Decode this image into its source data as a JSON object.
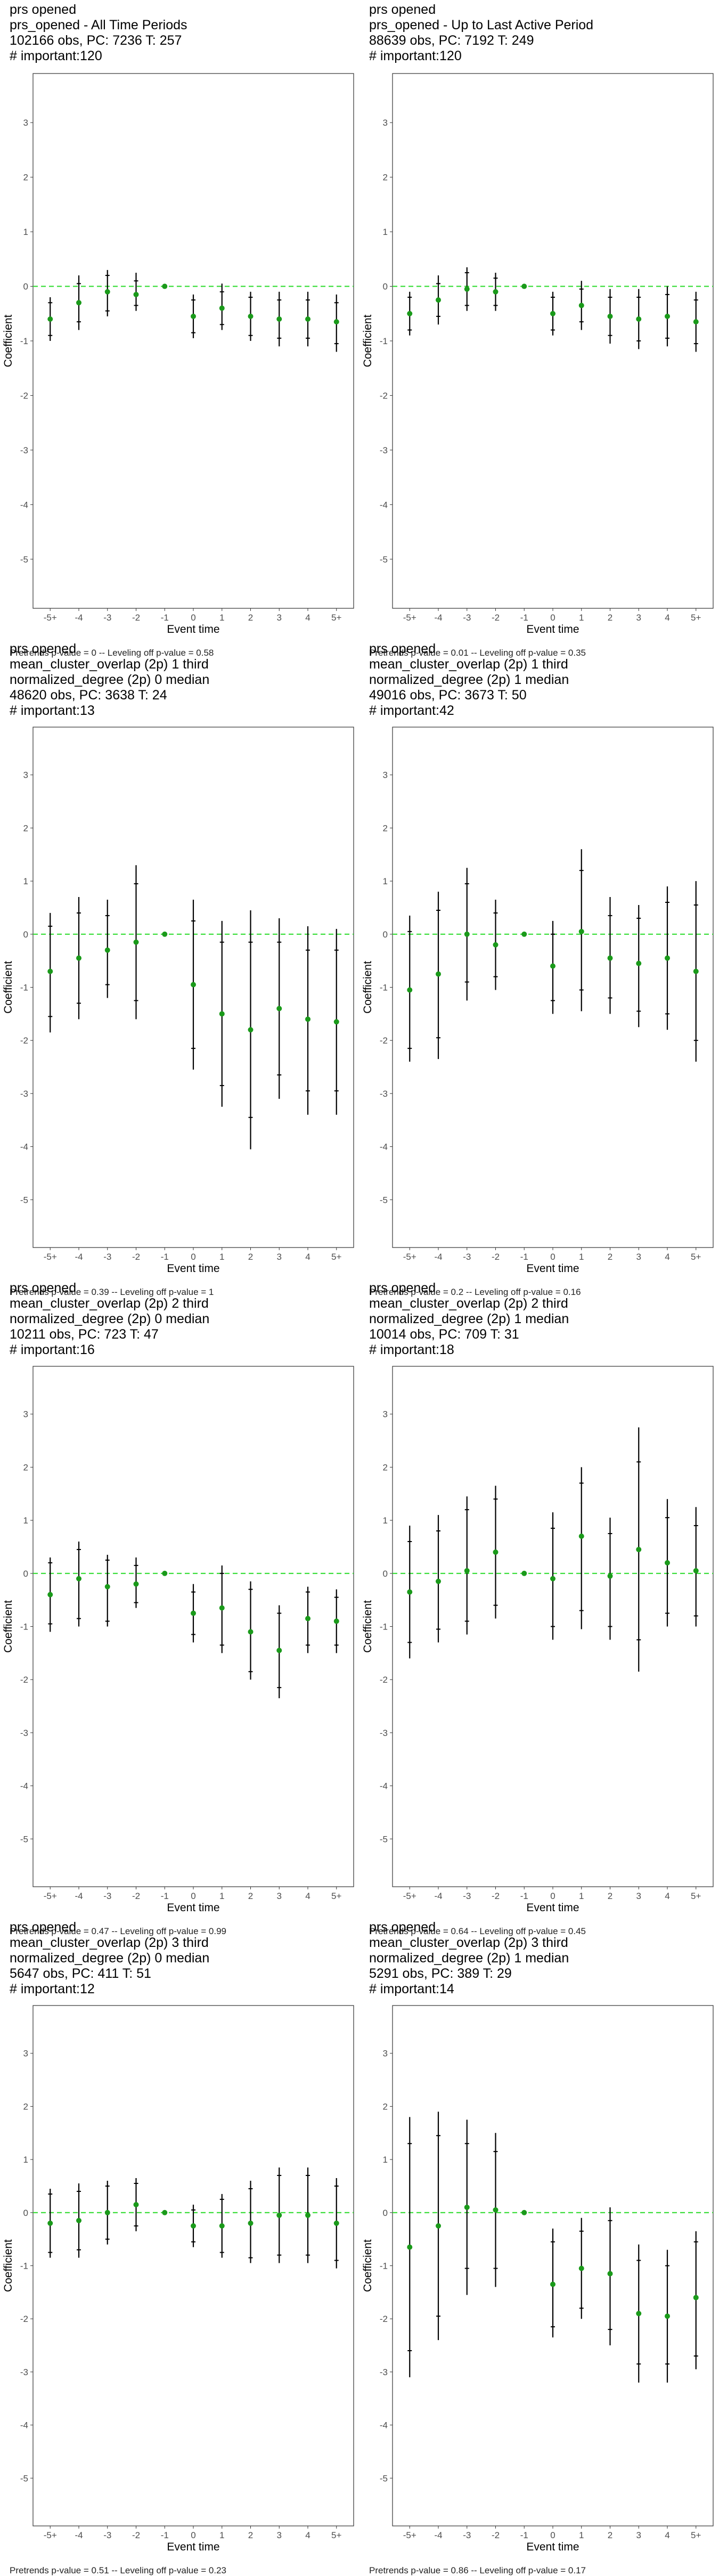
{
  "chart_data": [
    {
      "type": "scatter",
      "title_lines": [
        "prs opened",
        "prs_opened - All Time Periods",
        "102166 obs, PC: 7236 T: 257",
        "# important:120"
      ],
      "xlabel": "Event time",
      "ylabel": "Coefficient",
      "categories": [
        "-5+",
        "-4",
        "-3",
        "-2",
        "-1",
        "0",
        "1",
        "2",
        "3",
        "4",
        "5+"
      ],
      "ylim": [
        -5.9,
        3.9
      ],
      "yticks": [
        -5,
        -4,
        -3,
        -2,
        -1,
        0,
        1,
        2,
        3
      ],
      "estimate": [
        -0.6,
        -0.3,
        -0.1,
        -0.15,
        0.0,
        -0.55,
        -0.4,
        -0.55,
        -0.6,
        -0.6,
        -0.65
      ],
      "ci95_low": [
        -1.0,
        -0.8,
        -0.55,
        -0.45,
        0.0,
        -0.95,
        -0.8,
        -1.0,
        -1.1,
        -1.1,
        -1.2
      ],
      "ci95_high": [
        -0.2,
        0.2,
        0.3,
        0.25,
        0.0,
        -0.15,
        0.05,
        -0.1,
        -0.1,
        -0.1,
        -0.15
      ],
      "ci90_low": [
        -0.9,
        -0.65,
        -0.45,
        -0.35,
        0.0,
        -0.85,
        -0.7,
        -0.9,
        -0.95,
        -0.95,
        -1.05
      ],
      "ci90_high": [
        -0.3,
        0.05,
        0.2,
        0.1,
        0.0,
        -0.25,
        -0.1,
        -0.2,
        -0.25,
        -0.25,
        -0.3
      ],
      "footnote": "Pretrends p-value = 0 -- Leveling off p-value = 0.58"
    },
    {
      "type": "scatter",
      "title_lines": [
        "prs opened",
        "prs_opened - Up to Last Active Period",
        "88639 obs, PC: 7192 T: 249",
        "# important:120"
      ],
      "xlabel": "Event time",
      "ylabel": "Coefficient",
      "categories": [
        "-5+",
        "-4",
        "-3",
        "-2",
        "-1",
        "0",
        "1",
        "2",
        "3",
        "4",
        "5+"
      ],
      "ylim": [
        -5.9,
        3.9
      ],
      "yticks": [
        -5,
        -4,
        -3,
        -2,
        -1,
        0,
        1,
        2,
        3
      ],
      "estimate": [
        -0.5,
        -0.25,
        -0.05,
        -0.1,
        0.0,
        -0.5,
        -0.35,
        -0.55,
        -0.6,
        -0.55,
        -0.65
      ],
      "ci95_low": [
        -0.9,
        -0.7,
        -0.45,
        -0.45,
        0.0,
        -0.9,
        -0.8,
        -1.05,
        -1.15,
        -1.1,
        -1.2
      ],
      "ci95_high": [
        -0.1,
        0.2,
        0.35,
        0.25,
        0.0,
        -0.1,
        0.1,
        -0.05,
        -0.05,
        0.0,
        -0.1
      ],
      "ci90_low": [
        -0.8,
        -0.55,
        -0.35,
        -0.35,
        0.0,
        -0.8,
        -0.65,
        -0.9,
        -1.0,
        -0.95,
        -1.05
      ],
      "ci90_high": [
        -0.2,
        0.05,
        0.25,
        0.15,
        0.0,
        -0.2,
        -0.05,
        -0.2,
        -0.2,
        -0.15,
        -0.25
      ],
      "footnote": "Pretrends p-value = 0.01 -- Leveling off p-value = 0.35"
    },
    {
      "type": "scatter",
      "title_lines": [
        "prs opened",
        "mean_cluster_overlap (2p) 1 third",
        "normalized_degree (2p) 0 median",
        "48620 obs, PC: 3638 T: 24",
        "# important:13"
      ],
      "xlabel": "Event time",
      "ylabel": "Coefficient",
      "categories": [
        "-5+",
        "-4",
        "-3",
        "-2",
        "-1",
        "0",
        "1",
        "2",
        "3",
        "4",
        "5+"
      ],
      "ylim": [
        -5.9,
        3.9
      ],
      "yticks": [
        -5,
        -4,
        -3,
        -2,
        -1,
        0,
        1,
        2,
        3
      ],
      "estimate": [
        -0.7,
        -0.45,
        -0.3,
        -0.15,
        0.0,
        -0.95,
        -1.5,
        -1.8,
        -1.4,
        -1.6,
        -1.65
      ],
      "ci95_low": [
        -1.85,
        -1.6,
        -1.2,
        -1.6,
        0.0,
        -2.55,
        -3.25,
        -4.05,
        -3.1,
        -3.4,
        -3.4
      ],
      "ci95_high": [
        0.4,
        0.7,
        0.65,
        1.3,
        0.0,
        0.65,
        0.25,
        0.45,
        0.3,
        0.15,
        0.1
      ],
      "ci90_low": [
        -1.55,
        -1.3,
        -0.95,
        -1.25,
        0.0,
        -2.15,
        -2.85,
        -3.45,
        -2.65,
        -2.95,
        -2.95
      ],
      "ci90_high": [
        0.15,
        0.4,
        0.35,
        0.95,
        0.0,
        0.25,
        -0.15,
        -0.15,
        -0.15,
        -0.3,
        -0.3
      ],
      "footnote": "Pretrends p-value = 0.39 -- Leveling off p-value = 1"
    },
    {
      "type": "scatter",
      "title_lines": [
        "prs opened",
        "mean_cluster_overlap (2p) 1 third",
        "normalized_degree (2p) 1 median",
        "49016 obs, PC: 3673 T: 50",
        "# important:42"
      ],
      "xlabel": "Event time",
      "ylabel": "Coefficient",
      "categories": [
        "-5+",
        "-4",
        "-3",
        "-2",
        "-1",
        "0",
        "1",
        "2",
        "3",
        "4",
        "5+"
      ],
      "ylim": [
        -5.9,
        3.9
      ],
      "yticks": [
        -5,
        -4,
        -3,
        -2,
        -1,
        0,
        1,
        2,
        3
      ],
      "estimate": [
        -1.05,
        -0.75,
        0.0,
        -0.2,
        0.0,
        -0.6,
        0.05,
        -0.45,
        -0.55,
        -0.45,
        -0.7
      ],
      "ci95_low": [
        -2.4,
        -2.35,
        -1.25,
        -1.05,
        0.0,
        -1.5,
        -1.45,
        -1.5,
        -1.75,
        -1.8,
        -2.4
      ],
      "ci95_high": [
        0.35,
        0.8,
        1.25,
        0.65,
        0.0,
        0.25,
        1.6,
        0.7,
        0.55,
        0.9,
        1.0
      ],
      "ci90_low": [
        -2.15,
        -1.95,
        -0.9,
        -0.8,
        0.0,
        -1.25,
        -1.05,
        -1.2,
        -1.45,
        -1.5,
        -2.0
      ],
      "ci90_high": [
        0.05,
        0.45,
        0.95,
        0.4,
        0.0,
        0.0,
        1.2,
        0.35,
        0.3,
        0.6,
        0.55
      ],
      "footnote": "Pretrends p-value = 0.2 -- Leveling off p-value = 0.16"
    },
    {
      "type": "scatter",
      "title_lines": [
        "prs opened",
        "mean_cluster_overlap (2p) 2 third",
        "normalized_degree (2p) 0 median",
        "10211 obs, PC: 723 T: 47",
        "# important:16"
      ],
      "xlabel": "Event time",
      "ylabel": "Coefficient",
      "categories": [
        "-5+",
        "-4",
        "-3",
        "-2",
        "-1",
        "0",
        "1",
        "2",
        "3",
        "4",
        "5+"
      ],
      "ylim": [
        -5.9,
        3.9
      ],
      "yticks": [
        -5,
        -4,
        -3,
        -2,
        -1,
        0,
        1,
        2,
        3
      ],
      "estimate": [
        -0.4,
        -0.1,
        -0.25,
        -0.2,
        0.0,
        -0.75,
        -0.65,
        -1.1,
        -1.45,
        -0.85,
        -0.9
      ],
      "ci95_low": [
        -1.1,
        -1.0,
        -1.0,
        -0.65,
        0.0,
        -1.3,
        -1.5,
        -2.0,
        -2.35,
        -1.5,
        -1.5
      ],
      "ci95_high": [
        0.3,
        0.6,
        0.35,
        0.3,
        0.0,
        -0.2,
        0.15,
        -0.15,
        -0.6,
        -0.25,
        -0.3
      ],
      "ci90_low": [
        -0.95,
        -0.85,
        -0.9,
        -0.55,
        0.0,
        -1.15,
        -1.35,
        -1.85,
        -2.15,
        -1.35,
        -1.35
      ],
      "ci90_high": [
        0.2,
        0.45,
        0.25,
        0.15,
        0.0,
        -0.35,
        0.0,
        -0.3,
        -0.75,
        -0.35,
        -0.45
      ],
      "footnote": "Pretrends p-value = 0.47 -- Leveling off p-value = 0.99"
    },
    {
      "type": "scatter",
      "title_lines": [
        "prs opened",
        "mean_cluster_overlap (2p) 2 third",
        "normalized_degree (2p) 1 median",
        "10014 obs, PC: 709 T: 31",
        "# important:18"
      ],
      "xlabel": "Event time",
      "ylabel": "Coefficient",
      "categories": [
        "-5+",
        "-4",
        "-3",
        "-2",
        "-1",
        "0",
        "1",
        "2",
        "3",
        "4",
        "5+"
      ],
      "ylim": [
        -5.9,
        3.9
      ],
      "yticks": [
        -5,
        -4,
        -3,
        -2,
        -1,
        0,
        1,
        2,
        3
      ],
      "estimate": [
        -0.35,
        -0.15,
        0.05,
        0.4,
        0.0,
        -0.1,
        0.7,
        -0.05,
        0.45,
        0.2,
        0.05
      ],
      "ci95_low": [
        -1.6,
        -1.3,
        -1.15,
        -0.85,
        0.0,
        -1.25,
        -1.05,
        -1.25,
        -1.85,
        -1.0,
        -1.0
      ],
      "ci95_high": [
        0.9,
        1.1,
        1.45,
        1.65,
        0.0,
        1.15,
        2.0,
        1.05,
        2.75,
        1.4,
        1.25
      ],
      "ci90_low": [
        -1.3,
        -1.05,
        -0.9,
        -0.6,
        0.0,
        -1.0,
        -0.7,
        -1.0,
        -1.25,
        -0.75,
        -0.8
      ],
      "ci90_high": [
        0.6,
        0.8,
        1.2,
        1.4,
        0.0,
        0.85,
        1.7,
        0.75,
        2.1,
        1.05,
        0.9
      ],
      "footnote": "Pretrends p-value = 0.64 -- Leveling off p-value = 0.45"
    },
    {
      "type": "scatter",
      "title_lines": [
        "prs opened",
        "mean_cluster_overlap (2p) 3 third",
        "normalized_degree (2p) 0 median",
        "5647 obs, PC: 411 T: 51",
        "# important:12"
      ],
      "xlabel": "Event time",
      "ylabel": "Coefficient",
      "categories": [
        "-5+",
        "-4",
        "-3",
        "-2",
        "-1",
        "0",
        "1",
        "2",
        "3",
        "4",
        "5+"
      ],
      "ylim": [
        -5.9,
        3.9
      ],
      "yticks": [
        -5,
        -4,
        -3,
        -2,
        -1,
        0,
        1,
        2,
        3
      ],
      "estimate": [
        -0.2,
        -0.15,
        0.0,
        0.15,
        0.0,
        -0.25,
        -0.25,
        -0.2,
        -0.05,
        -0.05,
        -0.2
      ],
      "ci95_low": [
        -0.85,
        -0.85,
        -0.6,
        -0.35,
        0.0,
        -0.65,
        -0.85,
        -0.95,
        -0.95,
        -0.95,
        -1.05
      ],
      "ci95_high": [
        0.45,
        0.55,
        0.6,
        0.65,
        0.0,
        0.15,
        0.35,
        0.6,
        0.85,
        0.85,
        0.65
      ],
      "ci90_low": [
        -0.75,
        -0.7,
        -0.5,
        -0.25,
        0.0,
        -0.55,
        -0.75,
        -0.85,
        -0.8,
        -0.8,
        -0.9
      ],
      "ci90_high": [
        0.35,
        0.4,
        0.5,
        0.55,
        0.0,
        0.05,
        0.25,
        0.45,
        0.7,
        0.7,
        0.5
      ],
      "footnote": "Pretrends p-value = 0.51 -- Leveling off p-value = 0.23"
    },
    {
      "type": "scatter",
      "title_lines": [
        "prs opened",
        "mean_cluster_overlap (2p) 3 third",
        "normalized_degree (2p) 1 median",
        "5291 obs, PC: 389 T: 29",
        "# important:14"
      ],
      "xlabel": "Event time",
      "ylabel": "Coefficient",
      "categories": [
        "-5+",
        "-4",
        "-3",
        "-2",
        "-1",
        "0",
        "1",
        "2",
        "3",
        "4",
        "5+"
      ],
      "ylim": [
        -5.9,
        3.9
      ],
      "yticks": [
        -5,
        -4,
        -3,
        -2,
        -1,
        0,
        1,
        2,
        3
      ],
      "estimate": [
        -0.65,
        -0.25,
        0.1,
        0.05,
        0.0,
        -1.35,
        -1.05,
        -1.15,
        -1.9,
        -1.95,
        -1.6
      ],
      "ci95_low": [
        -3.1,
        -2.4,
        -1.55,
        -1.4,
        0.0,
        -2.35,
        -2.0,
        -2.5,
        -3.2,
        -3.2,
        -2.95
      ],
      "ci95_high": [
        1.8,
        1.9,
        1.75,
        1.5,
        0.0,
        -0.3,
        -0.1,
        0.1,
        -0.6,
        -0.7,
        -0.35
      ],
      "ci90_low": [
        -2.6,
        -1.95,
        -1.05,
        -1.05,
        0.0,
        -2.15,
        -1.8,
        -2.2,
        -2.85,
        -2.85,
        -2.7
      ],
      "ci90_high": [
        1.3,
        1.45,
        1.3,
        1.15,
        0.0,
        -0.55,
        -0.35,
        -0.15,
        -0.9,
        -1.0,
        -0.55
      ],
      "footnote": "Pretrends p-value = 0.86 -- Leveling off p-value = 0.17"
    }
  ],
  "colors": {
    "point": "#1a9a1a",
    "zero_line": "#33dd33",
    "error_bar": "#000000",
    "axis": "#333333",
    "tick_label": "#4d4d4d"
  }
}
